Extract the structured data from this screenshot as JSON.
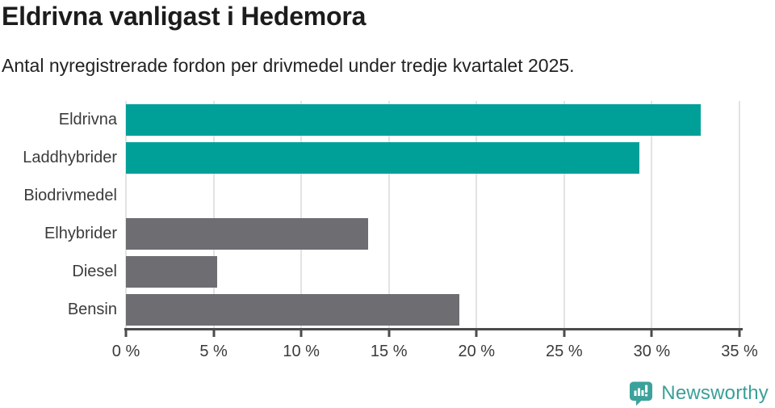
{
  "header": {
    "title": "Eldrivna vanligast i Hedemora",
    "subtitle": "Antal nyregistrerade fordon per drivmedel under tredje kvartalet 2025."
  },
  "chart_data": {
    "type": "bar",
    "orientation": "horizontal",
    "title": "Eldrivna vanligast i Hedemora",
    "subtitle": "Antal nyregistrerade fordon per drivmedel under tredje kvartalet 2025.",
    "categories": [
      "Eldrivna",
      "Laddhybrider",
      "Biodrivmedel",
      "Elhybrider",
      "Diesel",
      "Bensin"
    ],
    "values": [
      32.8,
      29.3,
      0,
      13.8,
      5.2,
      19.0
    ],
    "unit": "%",
    "xlim": [
      0,
      35
    ],
    "x_ticks": [
      0,
      5,
      10,
      15,
      20,
      25,
      30,
      35
    ],
    "x_tick_labels": [
      "0 %",
      "5 %",
      "10 %",
      "15 %",
      "20 %",
      "25 %",
      "30 %",
      "35 %"
    ],
    "bar_colors": [
      "#00a099",
      "#00a099",
      "#6d6d72",
      "#6d6d72",
      "#6d6d72",
      "#6d6d72"
    ],
    "grid": "vertical",
    "legend": "none",
    "xlabel": "",
    "ylabel": ""
  },
  "colors": {
    "highlight_bar": "#00a099",
    "default_bar": "#6d6d72",
    "gridline": "#e3e3e3",
    "axis": "#4b4b4c",
    "brand_teal": "#3b9f98"
  },
  "branding": {
    "logo_text": "Newsworthy",
    "icon": "newsworthy-chart-bubble-icon"
  }
}
